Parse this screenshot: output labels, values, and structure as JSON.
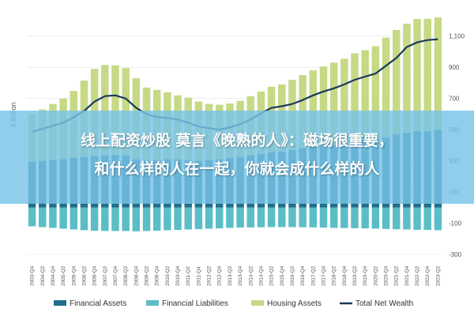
{
  "chart_data": {
    "type": "bar",
    "ylabel": "€ Billion",
    "ylim": [
      -300,
      1200
    ],
    "yticks": [
      -300,
      -100,
      100,
      300,
      500,
      700,
      900,
      1100
    ],
    "yticklabels": [
      "-300",
      "-100",
      "100",
      "300",
      "500",
      "700",
      "900",
      "1,100"
    ],
    "categories": [
      "2003-Q4",
      "2004-Q2",
      "2004-Q4",
      "2005-Q2",
      "2005-Q4",
      "2006-Q2",
      "2006-Q4",
      "2007-Q2",
      "2007-Q4",
      "2008-Q2",
      "2008-Q4",
      "2009-Q2",
      "2009-Q4",
      "2010-Q2",
      "2010-Q4",
      "2011-Q2",
      "2011-Q4",
      "2012-Q2",
      "2012-Q4",
      "2013-Q2",
      "2013-Q4",
      "2014-Q2",
      "2014-Q4",
      "2015-Q2",
      "2015-Q4",
      "2016-Q2",
      "2016-Q4",
      "2017-Q2",
      "2017-Q4",
      "2018-Q2",
      "2018-Q4",
      "2019-Q2",
      "2019-Q4",
      "2020-Q2",
      "2020-Q4",
      "2021-Q2",
      "2021-Q4",
      "2022-Q2",
      "2022-Q4",
      "2023-Q2"
    ],
    "series": [
      {
        "name": "Financial Assets",
        "kind": "bar",
        "color": "#1f6e8c",
        "values": [
          295,
          300,
          305,
          310,
          318,
          325,
          330,
          335,
          338,
          335,
          310,
          300,
          305,
          310,
          310,
          305,
          300,
          305,
          310,
          318,
          325,
          335,
          345,
          355,
          360,
          370,
          380,
          390,
          395,
          400,
          405,
          420,
          430,
          435,
          450,
          470,
          480,
          490,
          490,
          500
        ]
      },
      {
        "name": "Financial Liabilities",
        "kind": "bar",
        "color": "#5bbec6",
        "values": [
          -120,
          -125,
          -130,
          -135,
          -140,
          -145,
          -148,
          -150,
          -150,
          -150,
          -152,
          -150,
          -148,
          -145,
          -143,
          -140,
          -138,
          -135,
          -133,
          -130,
          -128,
          -127,
          -126,
          -125,
          -125,
          -125,
          -126,
          -127,
          -128,
          -130,
          -131,
          -132,
          -133,
          -135,
          -137,
          -139,
          -140,
          -142,
          -143,
          -145
        ]
      },
      {
        "name": "Housing Assets",
        "kind": "bar",
        "color": "#c6d985",
        "values": [
          310,
          330,
          360,
          390,
          430,
          490,
          560,
          580,
          575,
          560,
          520,
          470,
          450,
          430,
          410,
          400,
          380,
          360,
          350,
          350,
          360,
          380,
          400,
          420,
          430,
          450,
          470,
          490,
          510,
          530,
          550,
          570,
          580,
          600,
          640,
          670,
          700,
          720,
          720,
          720
        ]
      },
      {
        "name": "Total Net Wealth",
        "kind": "line",
        "color": "#1b3a5c",
        "values": [
          485,
          505,
          525,
          545,
          580,
          620,
          680,
          715,
          720,
          700,
          640,
          600,
          580,
          575,
          565,
          545,
          520,
          510,
          500,
          515,
          535,
          565,
          605,
          640,
          650,
          665,
          690,
          720,
          745,
          765,
          790,
          820,
          840,
          860,
          910,
          960,
          1030,
          1060,
          1075,
          1080
        ]
      }
    ],
    "grid": true,
    "legend": "bottom"
  },
  "overlay": {
    "line1": "线上配资炒股 莫言《晚熟的人》：磁场很重要，",
    "line2": "和什么样的人在一起，你就会成什么样的人"
  }
}
